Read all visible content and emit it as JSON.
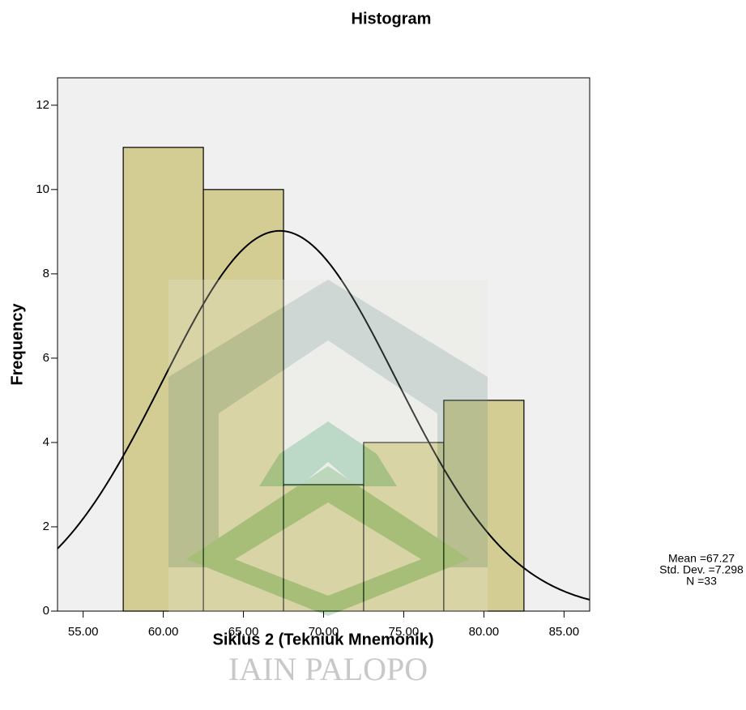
{
  "chart_data": {
    "type": "histogram",
    "title": "Histogram",
    "x_label": "Siklus 2 (Tekniuk Mnemonik)",
    "y_label": "Frequency",
    "bins": [
      57.5,
      62.5,
      67.5,
      72.5,
      77.5,
      82.5
    ],
    "values": [
      11,
      10,
      3,
      4,
      5
    ],
    "color": "#d3cd93",
    "xlim": [
      53.4,
      86.6
    ],
    "ylim": [
      0,
      12.65
    ],
    "xticks": [
      {
        "value": 55,
        "label": "55.00"
      },
      {
        "value": 60,
        "label": "60.00"
      },
      {
        "value": 65,
        "label": "65.00"
      },
      {
        "value": 70,
        "label": "70.00"
      },
      {
        "value": 75,
        "label": "75.00"
      },
      {
        "value": 80,
        "label": "80.00"
      },
      {
        "value": 85,
        "label": "85.00"
      }
    ],
    "yticks": [
      0,
      2,
      4,
      6,
      8,
      10,
      12
    ],
    "stats": [
      {
        "value": 67.27,
        "label": "Mean =67.27"
      },
      {
        "value": 7.298,
        "label": "Std. Dev. =7.298"
      },
      {
        "value": 33,
        "label": "N =33"
      }
    ],
    "watermark": "IAIN PALOPO"
  }
}
